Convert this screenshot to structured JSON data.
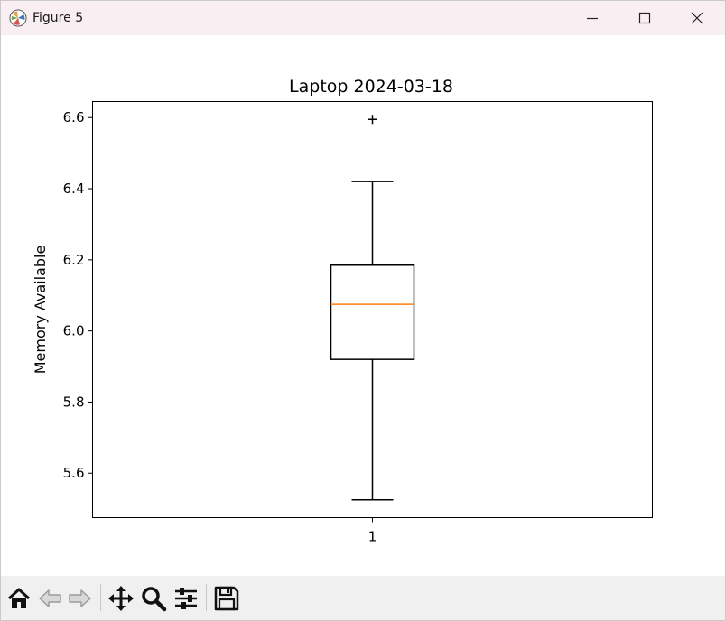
{
  "window": {
    "title": "Figure 5",
    "minimize_label": "Minimize",
    "maximize_label": "Maximize",
    "close_label": "Close",
    "icon": "matplotlib-figure-icon"
  },
  "chart_data": {
    "type": "box",
    "title": "Laptop 2024-03-18",
    "xlabel": "",
    "ylabel": "Memory Available",
    "categories": [
      "1"
    ],
    "yticks": [
      "5.6",
      "5.8",
      "6.0",
      "6.2",
      "6.4",
      "6.6"
    ],
    "ylim": [
      5.475,
      6.645
    ],
    "boxes": [
      {
        "label": "1",
        "whisker_low": 5.525,
        "q1": 5.92,
        "median": 6.075,
        "q3": 6.185,
        "whisker_high": 6.42,
        "outliers": [
          6.595
        ]
      }
    ],
    "grid": false,
    "colors": {
      "median": "#ff7f0e",
      "box": "#000000",
      "axes": "#000000"
    }
  },
  "toolbar": {
    "buttons": [
      {
        "name": "home-icon",
        "label": "Home"
      },
      {
        "name": "back-arrow-icon",
        "label": "Back"
      },
      {
        "name": "forward-arrow-icon",
        "label": "Forward"
      },
      {
        "name": "pan-icon",
        "label": "Pan"
      },
      {
        "name": "zoom-icon",
        "label": "Zoom"
      },
      {
        "name": "configure-subplots-icon",
        "label": "Configure subplots"
      },
      {
        "name": "save-icon",
        "label": "Save"
      }
    ]
  }
}
